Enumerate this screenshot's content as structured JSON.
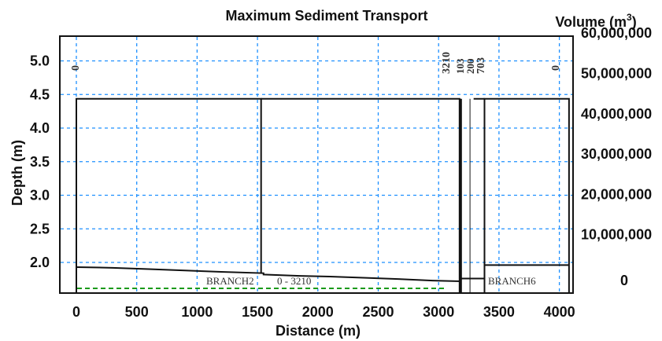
{
  "chart_data": {
    "type": "line",
    "title": "Maximum Sediment Transport",
    "xlabel": "Distance (m)",
    "ylabel_left": "Depth (m)",
    "ylabel_right": "Volume (m",
    "ylabel_right_sup": "3",
    "ylabel_right_close": ")",
    "x_ticks": [
      "0",
      "500",
      "1000",
      "1500",
      "2000",
      "2500",
      "3000",
      "3500",
      "4000"
    ],
    "x_tick_values": [
      0,
      500,
      1000,
      1500,
      2000,
      2500,
      3000,
      3500,
      4000
    ],
    "y_left_ticks": [
      "2.0",
      "2.5",
      "3.0",
      "3.5",
      "4.0",
      "4.5",
      "5.0"
    ],
    "y_left_values": [
      2.0,
      2.5,
      3.0,
      3.5,
      4.0,
      4.5,
      5.0
    ],
    "y_right_ticks": [
      "0",
      "10,000,000",
      "20,000,000",
      "30,000,000",
      "40,000,000",
      "50,000,000",
      "60,000,000"
    ],
    "y_right_values": [
      0,
      10000000,
      20000000,
      30000000,
      40000000,
      50000000,
      60000000
    ],
    "xlim": [
      0,
      4100
    ],
    "grid": true,
    "series": [
      {
        "values_description": "bed depth",
        "x": [
          0,
          300,
          600,
          900,
          1200,
          1550,
          1550,
          1850,
          2100,
          2400,
          2700,
          2950,
          3180,
          3180,
          3380,
          3380,
          4080
        ],
        "y": [
          1.93,
          1.92,
          1.9,
          1.88,
          1.86,
          1.84,
          1.82,
          1.8,
          1.79,
          1.77,
          1.75,
          1.73,
          1.72,
          1.76,
          1.76,
          1.96,
          1.96
        ]
      },
      {
        "values_description": "maximum transport volume",
        "x": [
          0,
          1530,
          1530,
          3180,
          3180,
          3260,
          3380,
          4080
        ],
        "y": [
          48000000,
          48000000,
          48000000,
          48000000,
          1500000,
          48000000,
          48000000,
          48000000
        ]
      }
    ],
    "annotations": {
      "top_labels": [
        "0",
        "3210",
        "103",
        "200",
        "703",
        "0"
      ],
      "branch_left": "BRANCH2",
      "branch_range": "0 - 3210",
      "branch_right": "BRANCH6"
    }
  }
}
